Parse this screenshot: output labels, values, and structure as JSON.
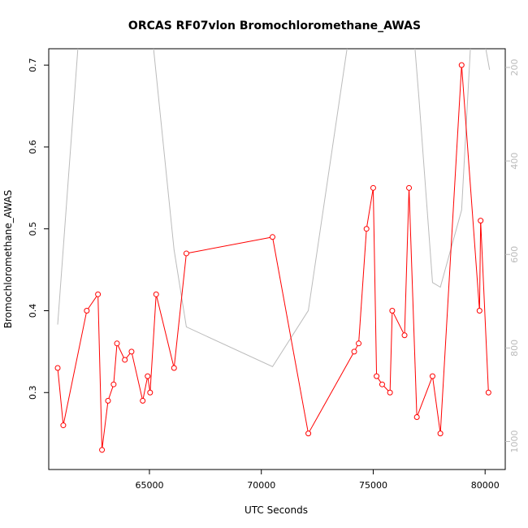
{
  "chart_data": {
    "type": "line",
    "title": "ORCAS RF07vlon Bromochloromethane_AWAS",
    "xlabel": "UTC Seconds",
    "ylabel": "Bromochloromethane_AWAS",
    "xlim": [
      60500,
      80900
    ],
    "ylim": [
      0.206,
      0.72
    ],
    "x_ticks": [
      65000,
      70000,
      75000,
      80000
    ],
    "y_ticks": [
      0.3,
      0.4,
      0.5,
      0.6,
      0.7
    ],
    "right_axis": {
      "ylim": [
        1060,
        160
      ],
      "ticks": [
        200,
        400,
        600,
        800,
        1000
      ],
      "color": "#bbbbbb"
    },
    "grid": false,
    "series": [
      {
        "color": "#ff0000",
        "marker": "open-circle",
        "x": [
          60900,
          61150,
          62200,
          62700,
          62880,
          63150,
          63400,
          63550,
          63900,
          64200,
          64700,
          64920,
          65030,
          65300,
          66100,
          66650,
          70500,
          72100,
          74150,
          74350,
          74700,
          75000,
          75150,
          75400,
          75750,
          75850,
          76400,
          76600,
          76950,
          77650,
          78000,
          78950,
          79750,
          79800,
          80150
        ],
        "y": [
          0.33,
          0.26,
          0.4,
          0.42,
          0.23,
          0.29,
          0.31,
          0.36,
          0.34,
          0.35,
          0.29,
          0.32,
          0.3,
          0.42,
          0.33,
          0.47,
          0.49,
          0.25,
          0.35,
          0.36,
          0.5,
          0.55,
          0.32,
          0.31,
          0.3,
          0.4,
          0.37,
          0.55,
          0.27,
          0.32,
          0.25,
          0.7,
          0.4,
          0.51,
          0.3
        ]
      },
      {
        "color": "#bbbbbb",
        "axis": "right",
        "x": [
          60900,
          62000,
          64500,
          65100,
          66100,
          66650,
          70500,
          72100,
          74200,
          76700,
          77050,
          77650,
          78000,
          78950,
          79500,
          80200
        ],
        "y": [
          750,
          30,
          40,
          120,
          590,
          755,
          840,
          720,
          40,
          60,
          270,
          660,
          670,
          505,
          20,
          205
        ]
      }
    ]
  }
}
